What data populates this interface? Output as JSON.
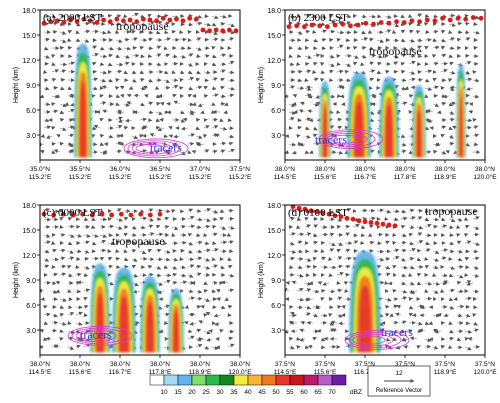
{
  "chart_data": [
    {
      "type": "heatmap",
      "panel_label": "(a) 2000 LST",
      "ylabel": "Height (km)",
      "yticks": [
        "3.0",
        "6.0",
        "9.0",
        "12.0",
        "15.0",
        "18.0"
      ],
      "ylim": [
        0,
        18
      ],
      "xticks": [
        [
          "35.0°N",
          "115.2°E"
        ],
        [
          "35.5°N",
          "115.2°E"
        ],
        [
          "36.0°N",
          "115.2°E"
        ],
        [
          "36.5°N",
          "115.2°E"
        ],
        [
          "37.0°N",
          "115.2°E"
        ],
        [
          "37.5°N",
          "115.2°E"
        ]
      ],
      "annotations": [
        "tropopause",
        "tracers"
      ],
      "tropopause_height_km": [
        16.4,
        16.6,
        16.7,
        16.5,
        16.8,
        16.6,
        16.9,
        16.7,
        16.5,
        16.8,
        16.6,
        16.9,
        16.7,
        16.8,
        16.6,
        16.9,
        16.8,
        16.7,
        17.0,
        16.8,
        16.9,
        16.7,
        17.0,
        16.9,
        15.6,
        15.5,
        15.6,
        15.5,
        15.6,
        15.5
      ],
      "convection_cores": [
        {
          "x_frac": 0.215,
          "top_km": 14.0,
          "width_frac": 0.09
        }
      ]
    },
    {
      "type": "heatmap",
      "panel_label": "(b) 2300 LST",
      "ylabel": "Height (km)",
      "yticks": [
        "3.0",
        "6.0",
        "9.0",
        "12.0",
        "15.0",
        "18.0"
      ],
      "ylim": [
        0,
        18
      ],
      "xticks": [
        [
          "38.0°N",
          "114.5°E"
        ],
        [
          "38.0°N",
          "115.6°E"
        ],
        [
          "38.0°N",
          "116.7°E"
        ],
        [
          "38.0°N",
          "117.8°E"
        ],
        [
          "38.0°N",
          "118.9°E"
        ],
        [
          "38.0°N",
          "120.0°E"
        ]
      ],
      "annotations": [
        "tropopause",
        "tracers"
      ],
      "tropopause_height_km": [
        16.0,
        16.1,
        16.0,
        16.2,
        16.1,
        16.0,
        16.2,
        16.3,
        16.1,
        16.2,
        16.4,
        16.3,
        16.5,
        16.4,
        16.6,
        16.5,
        16.7,
        16.6,
        16.8,
        16.7,
        17.0,
        16.8,
        17.0,
        16.9,
        17.1,
        17.0
      ],
      "convection_cores": [
        {
          "x_frac": 0.2,
          "top_km": 9.5,
          "width_frac": 0.06
        },
        {
          "x_frac": 0.37,
          "top_km": 10.5,
          "width_frac": 0.12
        },
        {
          "x_frac": 0.52,
          "top_km": 10.0,
          "width_frac": 0.1
        },
        {
          "x_frac": 0.67,
          "top_km": 9.0,
          "width_frac": 0.07
        },
        {
          "x_frac": 0.88,
          "top_km": 11.5,
          "width_frac": 0.05
        }
      ]
    },
    {
      "type": "heatmap",
      "panel_label": "(c) 0000 LST",
      "ylabel": "Height (km)",
      "yticks": [
        "3.0",
        "6.0",
        "9.0",
        "12.0",
        "15.0",
        "18.0"
      ],
      "ylim": [
        0,
        18
      ],
      "xticks": [
        [
          "38.0°N",
          "114.5°E"
        ],
        [
          "38.0°N",
          "115.6°E"
        ],
        [
          "38.0°N",
          "116.7°E"
        ],
        [
          "38.0°N",
          "117.8°E"
        ],
        [
          "38.0°N",
          "118.9°E"
        ],
        [
          "38.0°N",
          "120.0°E"
        ]
      ],
      "annotations": [
        "tropopause",
        "tracers"
      ],
      "tropopause_height_km": [
        16.9,
        16.8,
        16.9,
        16.8,
        16.9,
        16.8,
        16.9,
        16.8,
        16.9,
        16.8,
        16.9,
        16.8,
        16.9
      ],
      "convection_cores": [
        {
          "x_frac": 0.3,
          "top_km": 11.0,
          "width_frac": 0.1
        },
        {
          "x_frac": 0.42,
          "top_km": 10.5,
          "width_frac": 0.12
        },
        {
          "x_frac": 0.55,
          "top_km": 9.5,
          "width_frac": 0.1
        },
        {
          "x_frac": 0.68,
          "top_km": 8.0,
          "width_frac": 0.08
        }
      ]
    },
    {
      "type": "heatmap",
      "panel_label": "(d) 0100 LST",
      "ylabel": "Height (km)",
      "yticks": [
        "3.0",
        "6.0",
        "9.0",
        "12.0",
        "15.0",
        "18.0"
      ],
      "ylim": [
        0,
        18
      ],
      "xticks": [
        [
          "37.5°N",
          "114.5°E"
        ],
        [
          "37.5°N",
          "115.6°E"
        ],
        [
          "37.5°N",
          "116.7°E"
        ],
        [
          "37.5°N",
          "117.8°E"
        ],
        [
          "37.5°N",
          "118.9°E"
        ],
        [
          "37.5°N",
          "120.0°E"
        ]
      ],
      "annotations": [
        "tropopause",
        "tracers"
      ],
      "tropopause_height_km": [
        17.8,
        17.6,
        17.5,
        17.3,
        17.2,
        17.0,
        16.9,
        16.7,
        16.6,
        16.4,
        16.3,
        16.1,
        16.0,
        15.9,
        15.8,
        15.7,
        15.6,
        15.5
      ],
      "convection_cores": [
        {
          "x_frac": 0.4,
          "top_km": 12.5,
          "width_frac": 0.16
        }
      ]
    }
  ],
  "legend": {
    "levels": [
      "10",
      "15",
      "20",
      "25",
      "30",
      "35",
      "40",
      "45",
      "50",
      "55",
      "60",
      "65",
      "70"
    ],
    "unit": "dBZ",
    "colors": [
      "#ffffff",
      "#a6d9f2",
      "#62b4ea",
      "#7fe06b",
      "#2db84a",
      "#0f8a22",
      "#f2ee3d",
      "#f5b830",
      "#f07a1e",
      "#e8362a",
      "#c8161e",
      "#c01a6a",
      "#b85cc8",
      "#6a1fa0"
    ],
    "reference_value": "12",
    "reference_label": "Reference Vector"
  }
}
